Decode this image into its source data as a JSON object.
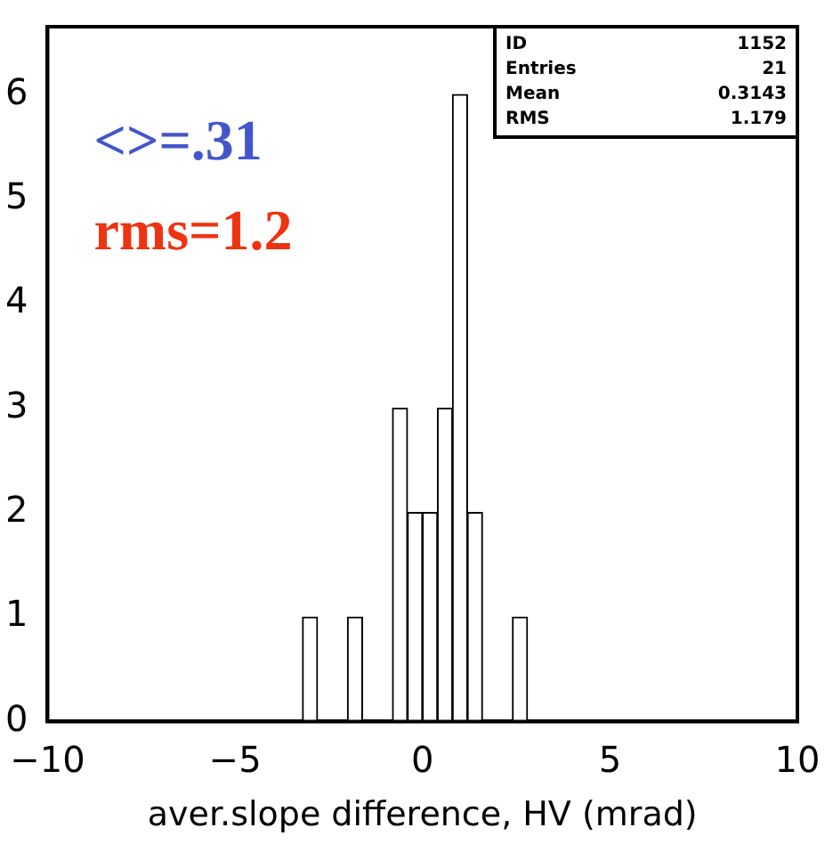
{
  "chart_data": {
    "type": "histogram",
    "xlabel": "aver.slope difference, HV (mrad)",
    "bins": [
      -3.2,
      -2.8,
      -2.4,
      -2.0,
      -1.6,
      -1.2,
      -0.8,
      -0.4,
      0,
      0.4,
      0.8,
      1.2,
      1.6,
      2.0,
      2.4,
      2.8
    ],
    "values": [
      1,
      0,
      0,
      1,
      0,
      0,
      3,
      2,
      2,
      3,
      6,
      2,
      0,
      0,
      1
    ],
    "color": "#000000",
    "xlim": [
      -10,
      10
    ],
    "xticks": [
      -10,
      -5,
      0,
      5,
      10
    ],
    "ylim": [
      0,
      6.65
    ],
    "yticks": [
      0,
      1,
      2,
      3,
      4,
      5,
      6
    ],
    "grid": false,
    "legend": false,
    "annotations": [
      "<>=.31",
      "rms=1.2",
      "ID",
      "1152",
      "Entries",
      "21",
      "Mean",
      "0.3143",
      "RMS",
      "1.179"
    ]
  }
}
